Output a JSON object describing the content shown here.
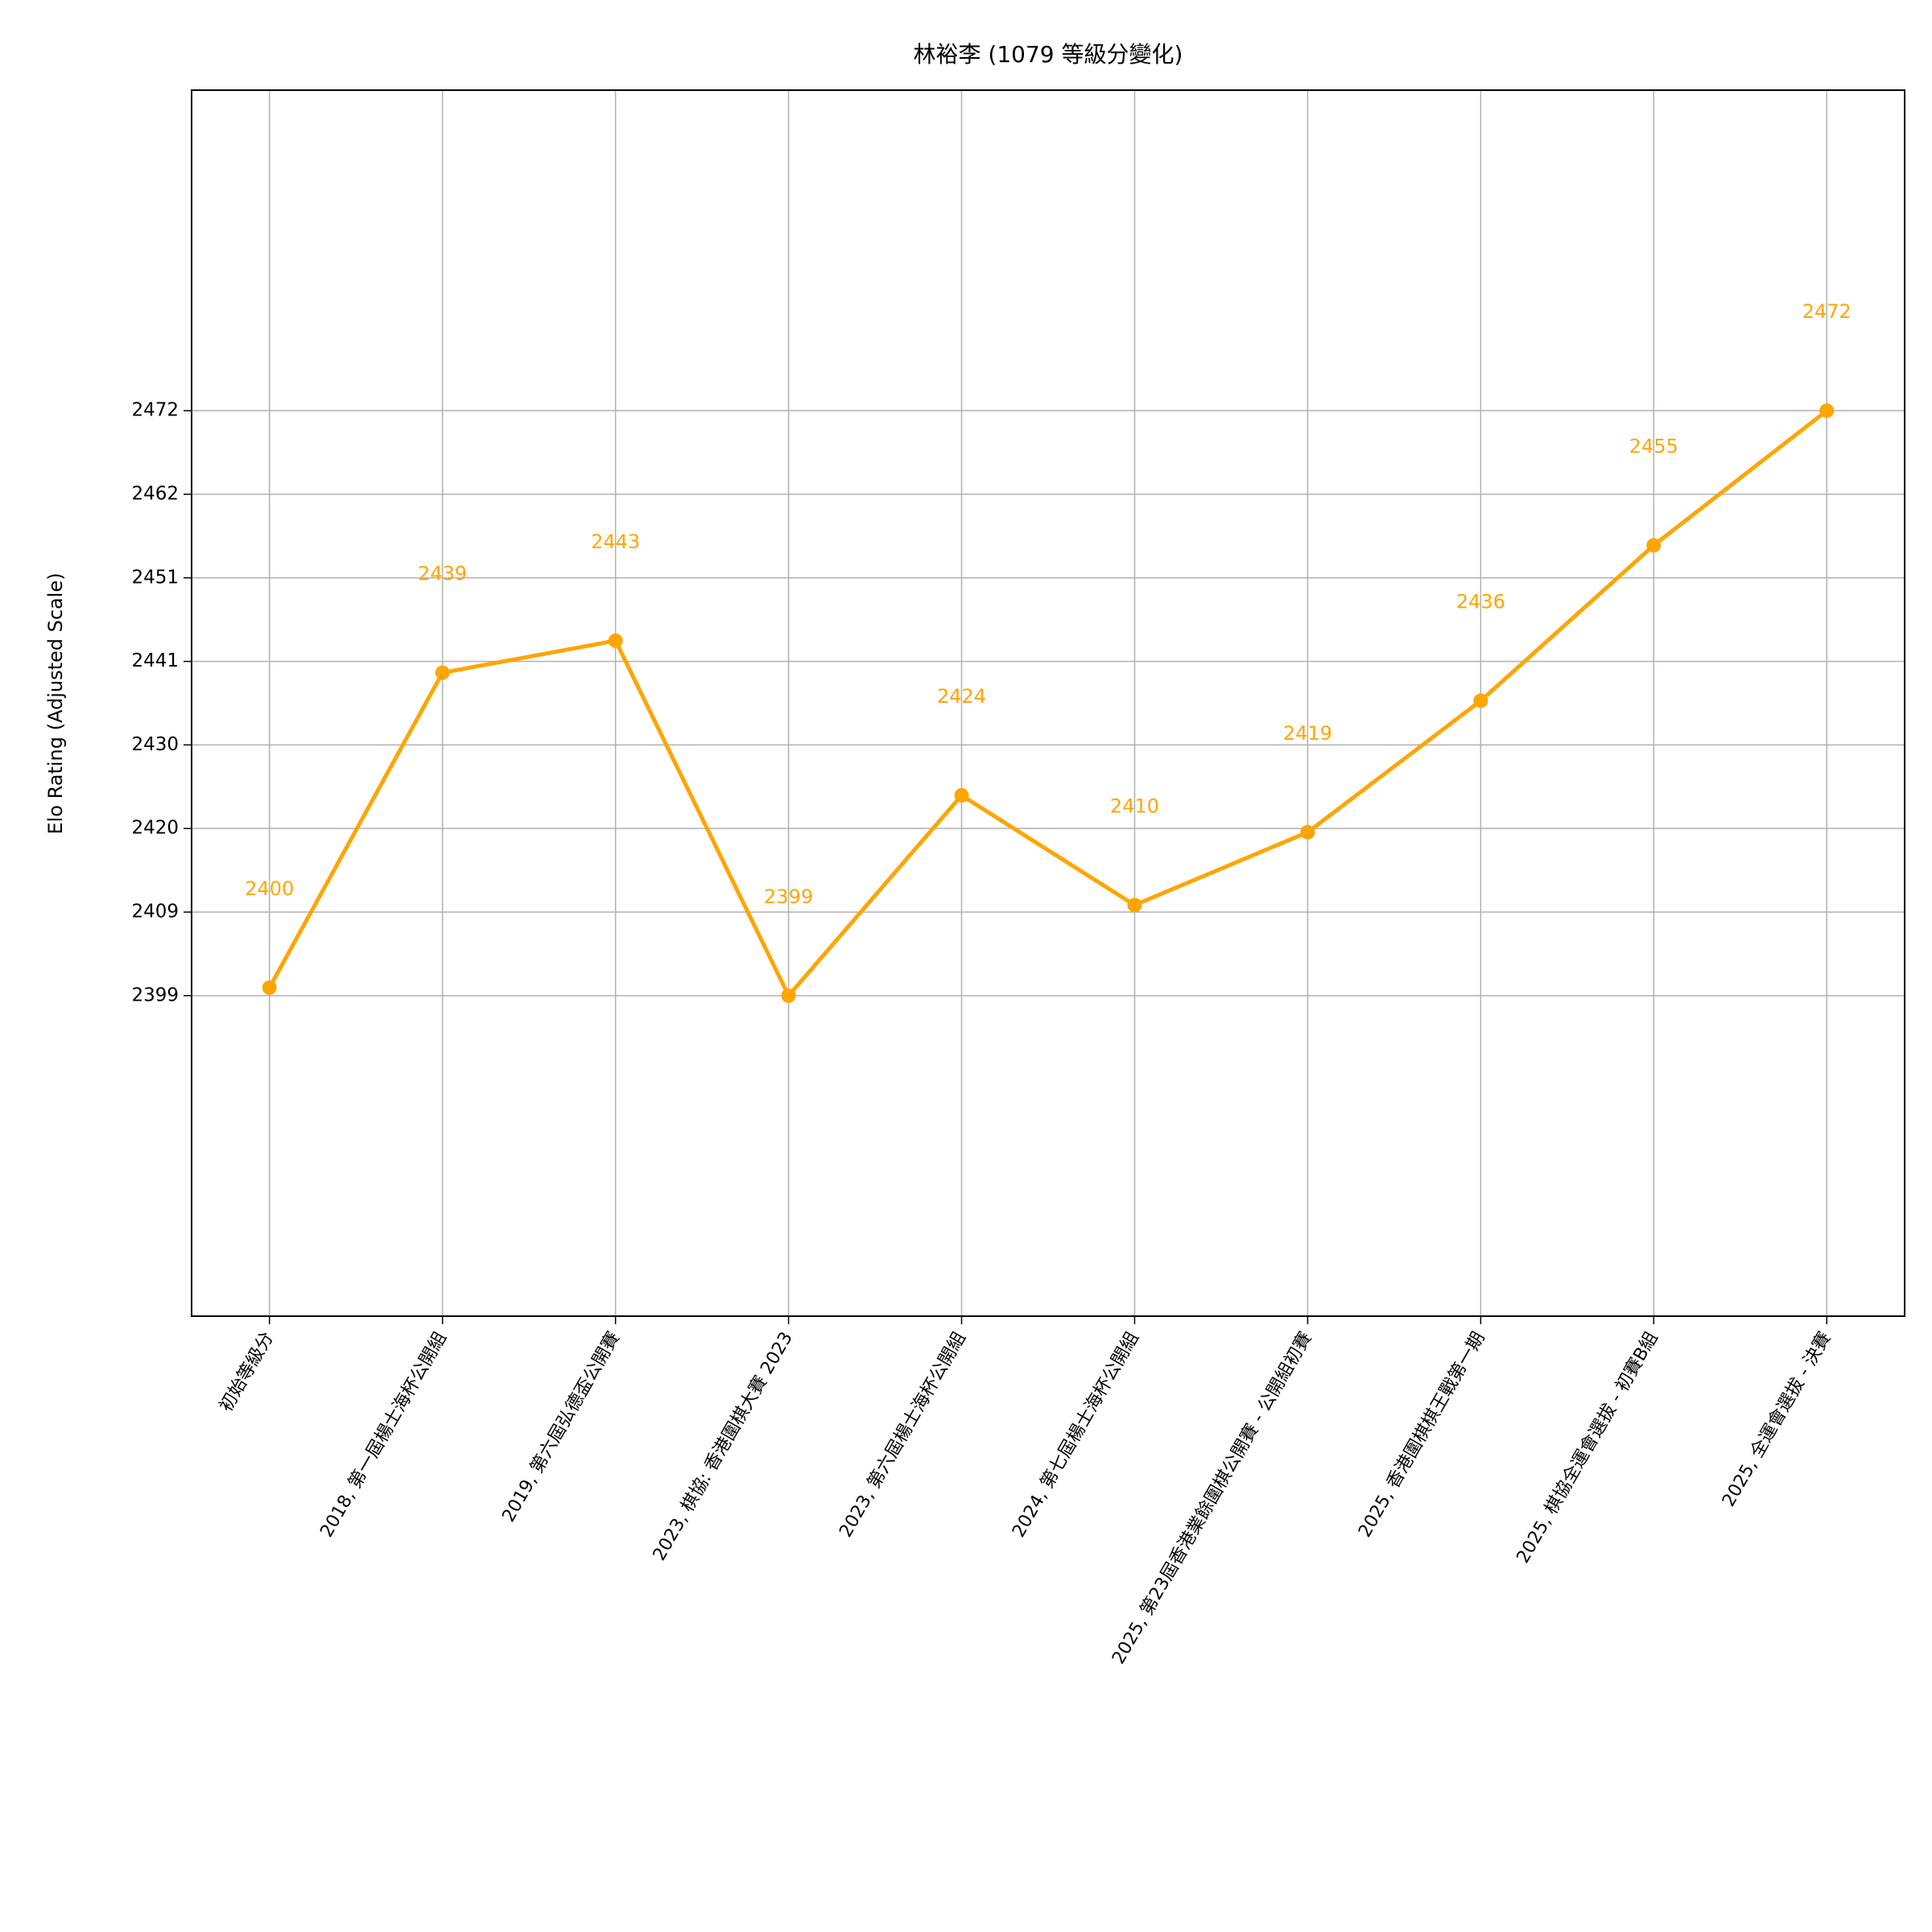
{
  "chart_data": {
    "type": "line",
    "title": "林裕李 (1079 等級分變化)",
    "y_label": "Elo Rating (Adjusted Scale)",
    "categories": [
      "初始等級分",
      "2018, 第一屆楊士海杯公開組",
      "2019, 第六屆弘德盃公開賽",
      "2023, 棋協: 香港圍棋大賽 2023",
      "2023, 第六屆楊士海杯公開組",
      "2024, 第七屆楊士海杯公開組",
      "2025, 第23屆香港業餘圍棋公開賽 - 公開組初賽",
      "2025, 香港圍棋棋王戰第一期",
      "2025, 棋協全運會選拔 - 初賽B組",
      "2025, 全運會選拔 - 決賽"
    ],
    "values": [
      2400,
      2439.3,
      2443.3,
      2399,
      2424,
      2410.3,
      2419.4,
      2435.8,
      2455.2,
      2472
    ],
    "value_labels": [
      "2400",
      "2439",
      "2443",
      "2399",
      "2424",
      "2410",
      "2419",
      "2436",
      "2455",
      "2472"
    ],
    "color": "#ffa500",
    "ylim": [
      2359,
      2512
    ],
    "yticks": [
      2399,
      {
        "value": 2409.43,
        "label": "2409"
      },
      {
        "value": 2419.86,
        "label": "2420"
      },
      {
        "value": 2430.29,
        "label": "2430"
      },
      {
        "value": 2440.71,
        "label": "2441"
      },
      {
        "value": 2451.14,
        "label": "2451"
      },
      {
        "value": 2461.57,
        "label": "2462"
      },
      2472
    ],
    "grid": true
  }
}
